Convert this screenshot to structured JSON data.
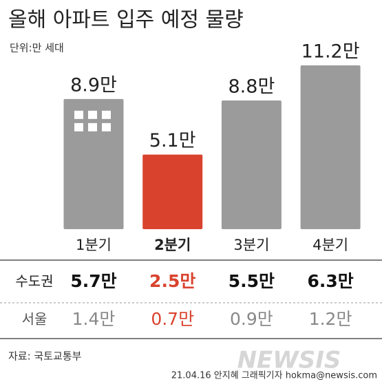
{
  "chart_data": {
    "type": "bar",
    "title": "올해 아파트 입주 예정 물량",
    "unit": "단위:만 세대",
    "categories": [
      "1분기",
      "2분기",
      "3분기",
      "4분기"
    ],
    "values": [
      8.9,
      5.1,
      8.8,
      11.2
    ],
    "value_labels": [
      "8.9만",
      "5.1만",
      "8.8만",
      "11.2만"
    ],
    "colors": [
      "#9b9b9b",
      "#d9432e",
      "#9b9b9b",
      "#9b9b9b"
    ],
    "table": {
      "rows": [
        {
          "label": "수도권",
          "cells": [
            "5.7만",
            "2.5만",
            "5.5만",
            "6.3만"
          ]
        },
        {
          "label": "서울",
          "cells": [
            "1.4만",
            "0.7만",
            "0.9만",
            "1.2만"
          ]
        }
      ]
    },
    "source": "자료: 국토교통부",
    "credit": "21.04.16 안지혜 그래픽기자 hokma@newsis.com",
    "watermark": "NEWSIS"
  }
}
